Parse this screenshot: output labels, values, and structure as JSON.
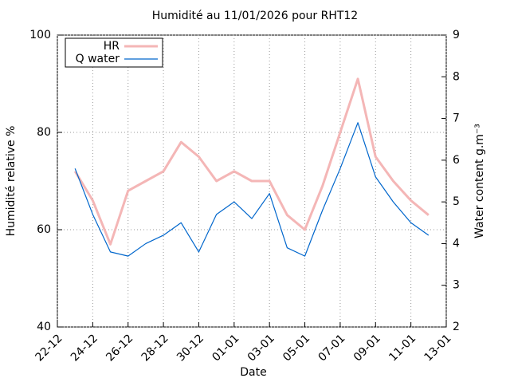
{
  "chart_data": {
    "type": "line",
    "title": "Humidité au 11/01/2026 pour RHT12",
    "x_label": "Date",
    "y_label": "Humidité relative %",
    "y2_label": "Water content g.m⁻³",
    "x": [
      "22-12",
      "23-12",
      "24-12",
      "25-12",
      "26-12",
      "27-12",
      "28-12",
      "29-12",
      "30-12",
      "31-12",
      "01-01",
      "02-01",
      "03-01",
      "04-01",
      "05-01",
      "06-01",
      "07-01",
      "08-01",
      "09-01",
      "10-01",
      "11-01",
      "12-01",
      "13-01"
    ],
    "series": [
      {
        "name": "HR",
        "color": "#f4b6b6",
        "values": [
          null,
          72,
          66,
          57,
          68,
          70,
          72,
          78,
          75,
          70,
          72,
          70,
          70,
          63,
          60,
          69,
          80,
          91,
          75,
          70,
          66,
          63,
          null
        ]
      },
      {
        "name": "Q water",
        "color": "#0066cc",
        "axis": "y2",
        "values": [
          null,
          5.8,
          4.7,
          3.8,
          3.7,
          4.0,
          4.2,
          4.5,
          3.8,
          4.7,
          5.0,
          4.6,
          5.2,
          3.9,
          3.7,
          4.8,
          5.8,
          6.9,
          5.6,
          5.0,
          4.5,
          4.2,
          null
        ]
      }
    ],
    "xlim": [
      "22-12",
      "13-01"
    ],
    "xticks": [
      "22-12",
      "24-12",
      "26-12",
      "28-12",
      "30-12",
      "01-01",
      "03-01",
      "05-01",
      "07-01",
      "09-01",
      "11-01",
      "13-01"
    ],
    "ylim": [
      40,
      100
    ],
    "yticks": [
      40,
      60,
      80,
      100
    ],
    "y2lim": [
      2,
      9
    ],
    "y2ticks": [
      2,
      3,
      4,
      5,
      6,
      7,
      8,
      9
    ],
    "grid": true,
    "legend": "upper left"
  }
}
